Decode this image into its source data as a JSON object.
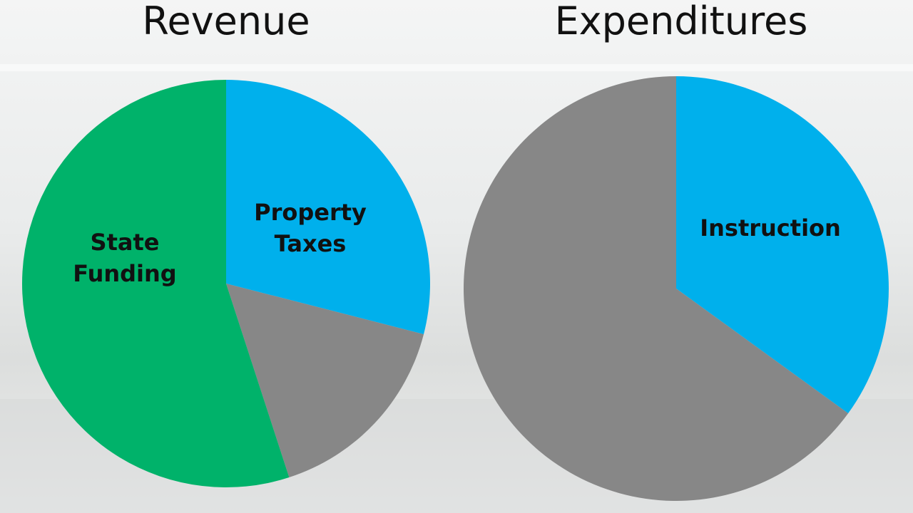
{
  "chart_data": [
    {
      "type": "pie",
      "title": "Revenue",
      "categories": [
        "Property Taxes",
        null,
        "State Funding"
      ],
      "values": [
        29,
        16,
        55
      ],
      "colors": [
        "#00b0ec",
        "#878787",
        "#00b26a"
      ]
    },
    {
      "type": "pie",
      "title": "Expenditures",
      "categories": [
        "Instruction",
        null
      ],
      "values": [
        35,
        65
      ],
      "colors": [
        "#00b0ec",
        "#878787"
      ]
    }
  ]
}
